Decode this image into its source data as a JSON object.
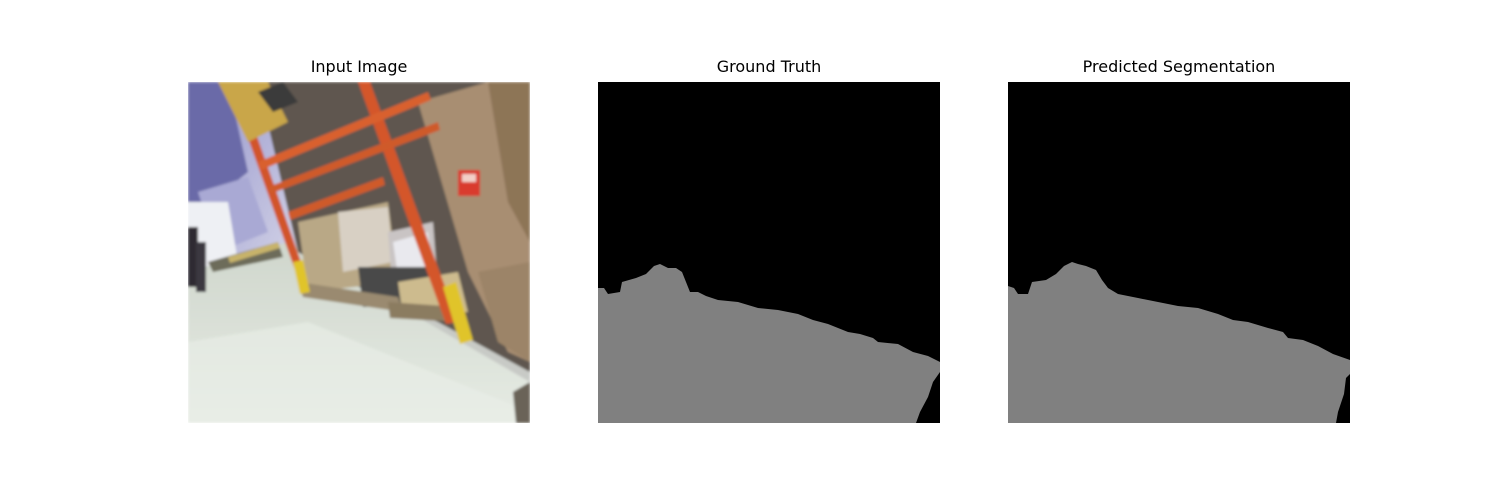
{
  "figure": {
    "panels": [
      {
        "title": "Input Image"
      },
      {
        "title": "Ground Truth"
      },
      {
        "title": "Predicted Segmentation"
      }
    ]
  },
  "colors": {
    "background_class": "#000000",
    "floor_class": "#808080"
  }
}
